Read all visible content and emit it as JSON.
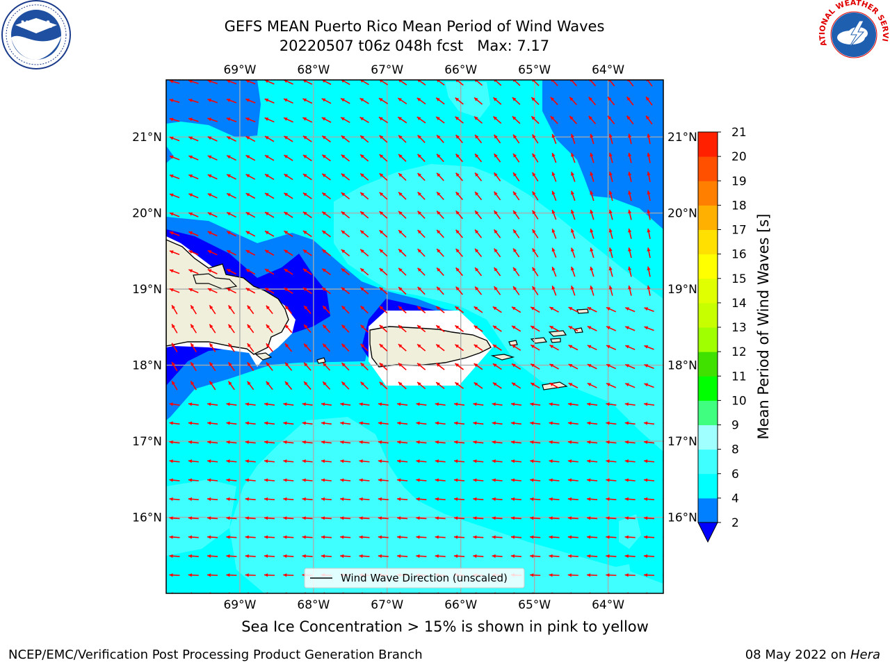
{
  "title": {
    "line1": "GEFS MEAN Puerto Rico Mean Period of Wind Waves",
    "line2": "20220507 t06z 048h fcst   Max: 7.17"
  },
  "map": {
    "lon_range": [
      -70.0,
      -63.25
    ],
    "lat_range": [
      15.0,
      21.75
    ],
    "lon_ticks": [
      {
        "value": -69,
        "label": "69°W"
      },
      {
        "value": -68,
        "label": "68°W"
      },
      {
        "value": -67,
        "label": "67°W"
      },
      {
        "value": -66,
        "label": "66°W"
      },
      {
        "value": -65,
        "label": "65°W"
      },
      {
        "value": -64,
        "label": "64°W"
      }
    ],
    "lat_ticks": [
      {
        "value": 16,
        "label": "16°N"
      },
      {
        "value": 17,
        "label": "17°N"
      },
      {
        "value": 18,
        "label": "18°N"
      },
      {
        "value": 19,
        "label": "19°N"
      },
      {
        "value": 20,
        "label": "20°N"
      },
      {
        "value": 21,
        "label": "21°N"
      }
    ],
    "grid": true,
    "arrow_color": "#ff0000",
    "legend_label": "Wind Wave Direction (unscaled)",
    "legend_position": "bottom-center"
  },
  "colorbar": {
    "label": "Mean Period of Wind Waves [s]",
    "min": 2,
    "max": 21,
    "extend": "min",
    "under_color": "#0000ff",
    "ticks": [
      "2",
      "4",
      "6",
      "8",
      "9",
      "10",
      "11",
      "12",
      "13",
      "14",
      "15",
      "16",
      "17",
      "18",
      "19",
      "20",
      "21"
    ],
    "colors": [
      "#0080ff",
      "#00ffff",
      "#40ffff",
      "#a0ffff",
      "#40ff80",
      "#00ff00",
      "#40e000",
      "#a0ff00",
      "#c8ff00",
      "#e0ff00",
      "#ffff00",
      "#ffe000",
      "#ffb000",
      "#ff8000",
      "#ff5000",
      "#ff2000"
    ]
  },
  "caption": "Sea Ice Concentration > 15% is shown in pink to yellow",
  "footer": {
    "left": "NCEP/EMC/Verification Post Processing Product Generation Branch",
    "right_prefix": "08 May 2022 on ",
    "right_italic": "Hera"
  },
  "logos": {
    "left": "NOAA",
    "right": "NATIONAL WEATHER SERVICE"
  }
}
